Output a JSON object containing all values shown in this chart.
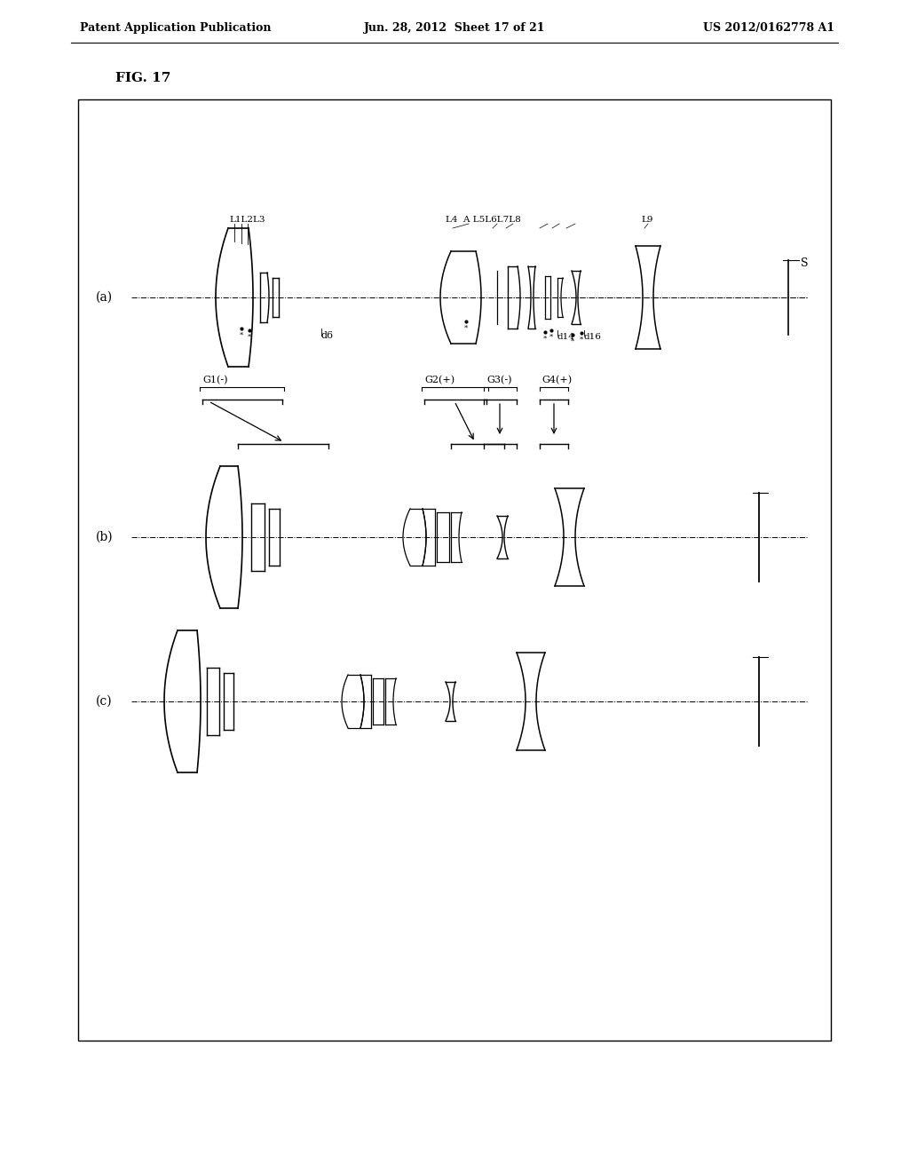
{
  "header_left": "Patent Application Publication",
  "header_mid": "Jun. 28, 2012  Sheet 17 of 21",
  "header_right": "US 2012/0162778 A1",
  "fig_label": "FIG. 17",
  "background": "#ffffff",
  "label_a": "(a)",
  "label_b": "(b)",
  "label_c": "(c)"
}
